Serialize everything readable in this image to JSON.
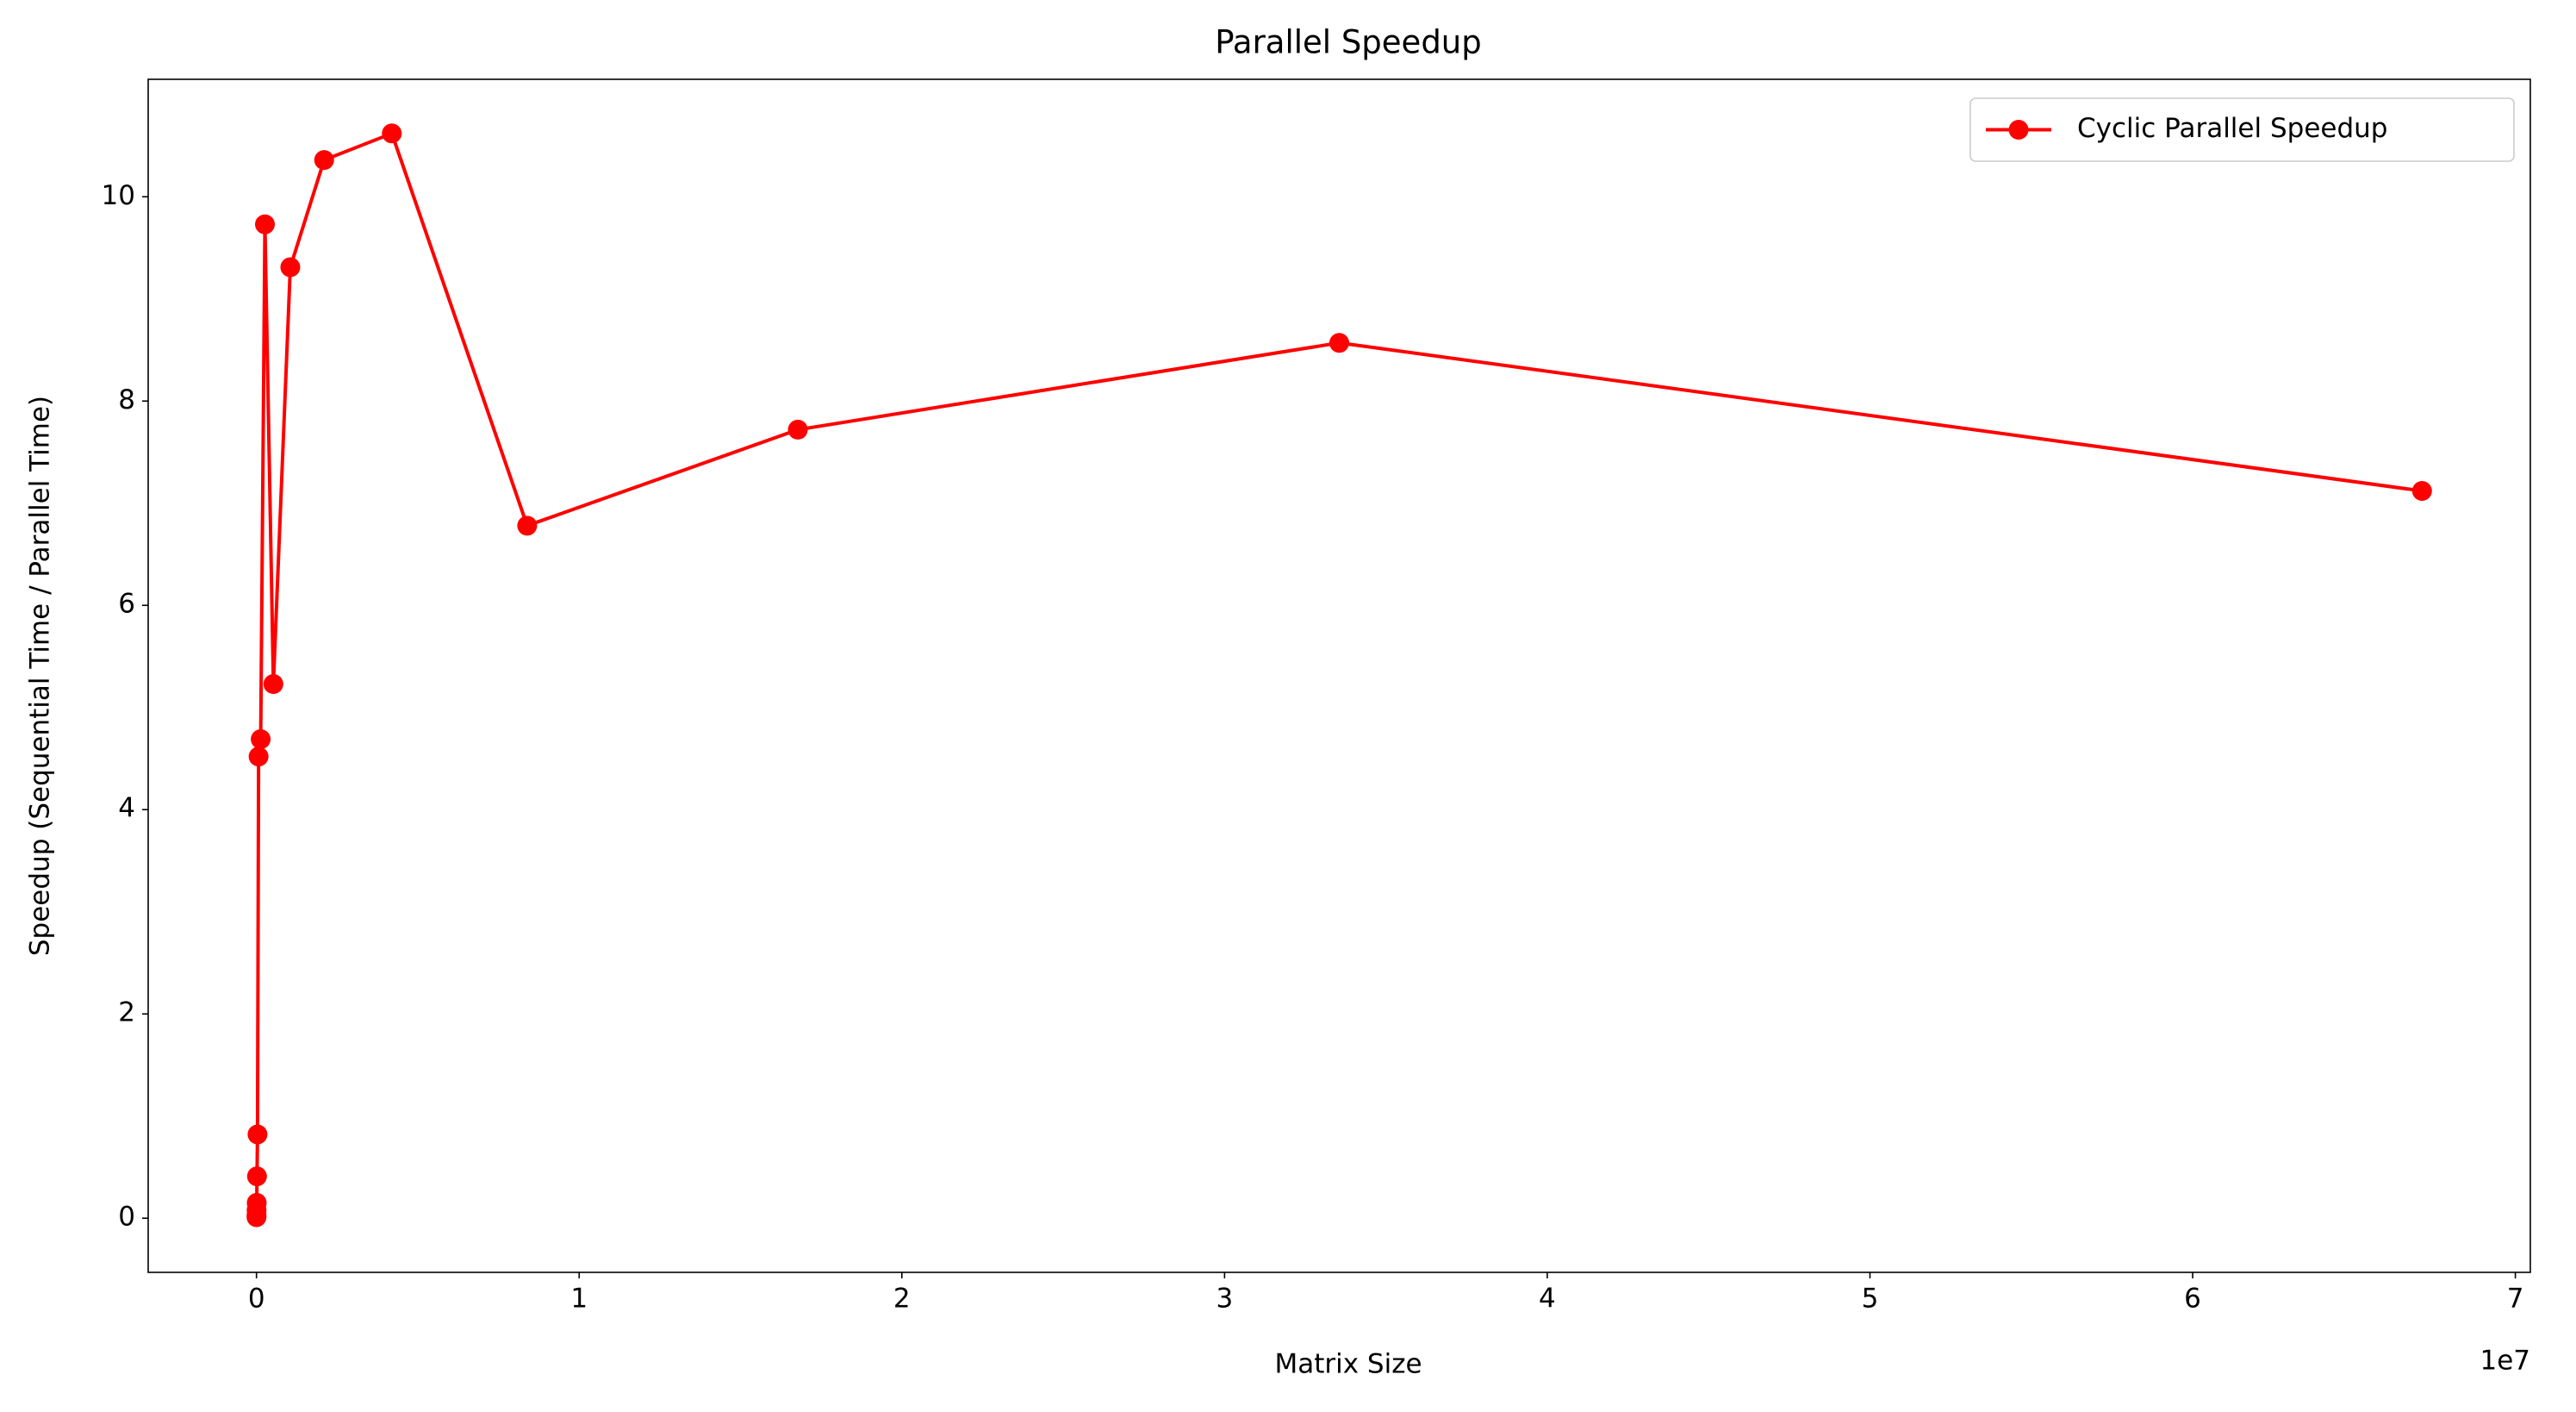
{
  "chart_data": {
    "type": "line",
    "title": "Parallel Speedup",
    "x_label": "Matrix Size",
    "y_label": "Speedup (Sequential Time / Parallel Time)",
    "x_offset_text": "1e7",
    "x": [
      1024,
      2048,
      4096,
      8192,
      16384,
      32768,
      65536,
      131072,
      262144,
      524288,
      1048576,
      2097152,
      4194304,
      8388608,
      16777216,
      33554432,
      67108864
    ],
    "series": [
      {
        "name": "Cyclic Parallel Speedup",
        "color": "#ff0000",
        "values": [
          0.01,
          0.03,
          0.08,
          0.15,
          0.41,
          0.82,
          4.52,
          4.69,
          9.73,
          5.23,
          9.31,
          10.36,
          10.62,
          6.78,
          7.72,
          8.57,
          7.12
        ]
      }
    ],
    "xlim": [
      -3355443,
      70464307
    ],
    "ylim": [
      -0.53,
      11.15
    ],
    "xticks": [
      0,
      {
        "value": 10000000,
        "label": "1"
      },
      {
        "value": 20000000,
        "label": "2"
      },
      {
        "value": 30000000,
        "label": "3"
      },
      {
        "value": 40000000,
        "label": "4"
      },
      {
        "value": 50000000,
        "label": "5"
      },
      {
        "value": 60000000,
        "label": "6"
      },
      {
        "value": 70000000,
        "label": "7"
      }
    ],
    "yticks": [
      0,
      2,
      4,
      6,
      8,
      10
    ],
    "grid": false,
    "legend": "upper right"
  }
}
